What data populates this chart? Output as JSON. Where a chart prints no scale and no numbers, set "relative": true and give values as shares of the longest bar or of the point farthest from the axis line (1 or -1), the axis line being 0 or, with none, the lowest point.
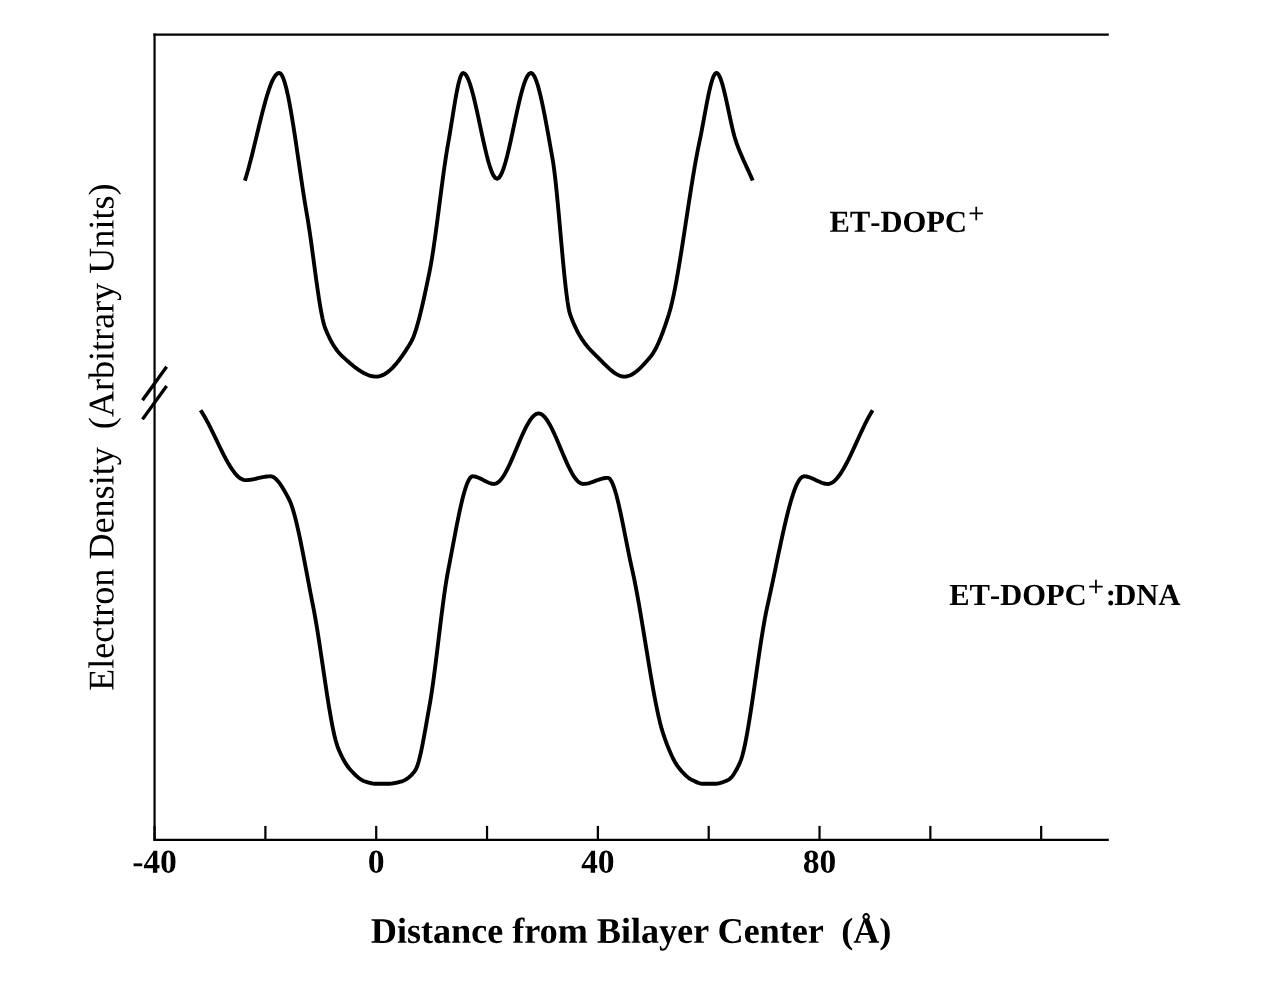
{
  "chart_data": {
    "type": "line",
    "relative": true,
    "xlabel": "Distance from Bilayer Center  (Å)",
    "ylabel": "Electron Density  (Arbitrary Units)",
    "xlim": [
      -40,
      132
    ],
    "xticks": [
      -40,
      {
        "value": -20,
        "label": null
      },
      0,
      {
        "value": 20,
        "label": null
      },
      40,
      {
        "value": 60,
        "label": null
      },
      80,
      {
        "value": 100,
        "label": null
      },
      {
        "value": 120,
        "label": null
      }
    ],
    "grid": false,
    "legend": false,
    "marker": "none",
    "line_style": "solid",
    "series": [
      {
        "name": "ET-DOPC$^{+}$",
        "color": "#000000",
        "x": [
          -23.6,
          -17.5,
          -12.5,
          -9.2,
          -5.9,
          0,
          6.2,
          9.6,
          13,
          15.7,
          21.8,
          27.9,
          31.8,
          35,
          40,
          44.8,
          49.5,
          52.8,
          58.3,
          61.4,
          65,
          67.8
        ],
        "values": [
          0.862,
          1.0,
          0.815,
          0.667,
          0.629,
          0.604,
          0.648,
          0.74,
          0.909,
          1.0,
          0.862,
          1.0,
          0.889,
          0.685,
          0.629,
          0.604,
          0.63,
          0.685,
          0.909,
          1.0,
          0.909,
          0.862
        ]
      },
      {
        "name": "ET-DOPC$^{+}$:DNA",
        "color": "#000000",
        "x": [
          -31.5,
          -23.6,
          -19.1,
          -15.8,
          -11.4,
          -6.9,
          -4.5,
          -2,
          0,
          2,
          4.5,
          7,
          9.6,
          13,
          17.4,
          21.3,
          29.3,
          37.3,
          41.8,
          46.2,
          51.8,
          54.5,
          57,
          59,
          61,
          63.5,
          65.6,
          70.6,
          77.2,
          81.5,
          89.4
        ],
        "values": [
          0.558,
          0.469,
          0.474,
          0.445,
          0.305,
          0.12,
          0.09,
          0.076,
          0.073,
          0.073,
          0.076,
          0.09,
          0.174,
          0.352,
          0.474,
          0.464,
          0.556,
          0.464,
          0.472,
          0.352,
          0.138,
          0.095,
          0.078,
          0.073,
          0.073,
          0.078,
          0.1,
          0.305,
          0.474,
          0.464,
          0.558
        ]
      }
    ]
  }
}
